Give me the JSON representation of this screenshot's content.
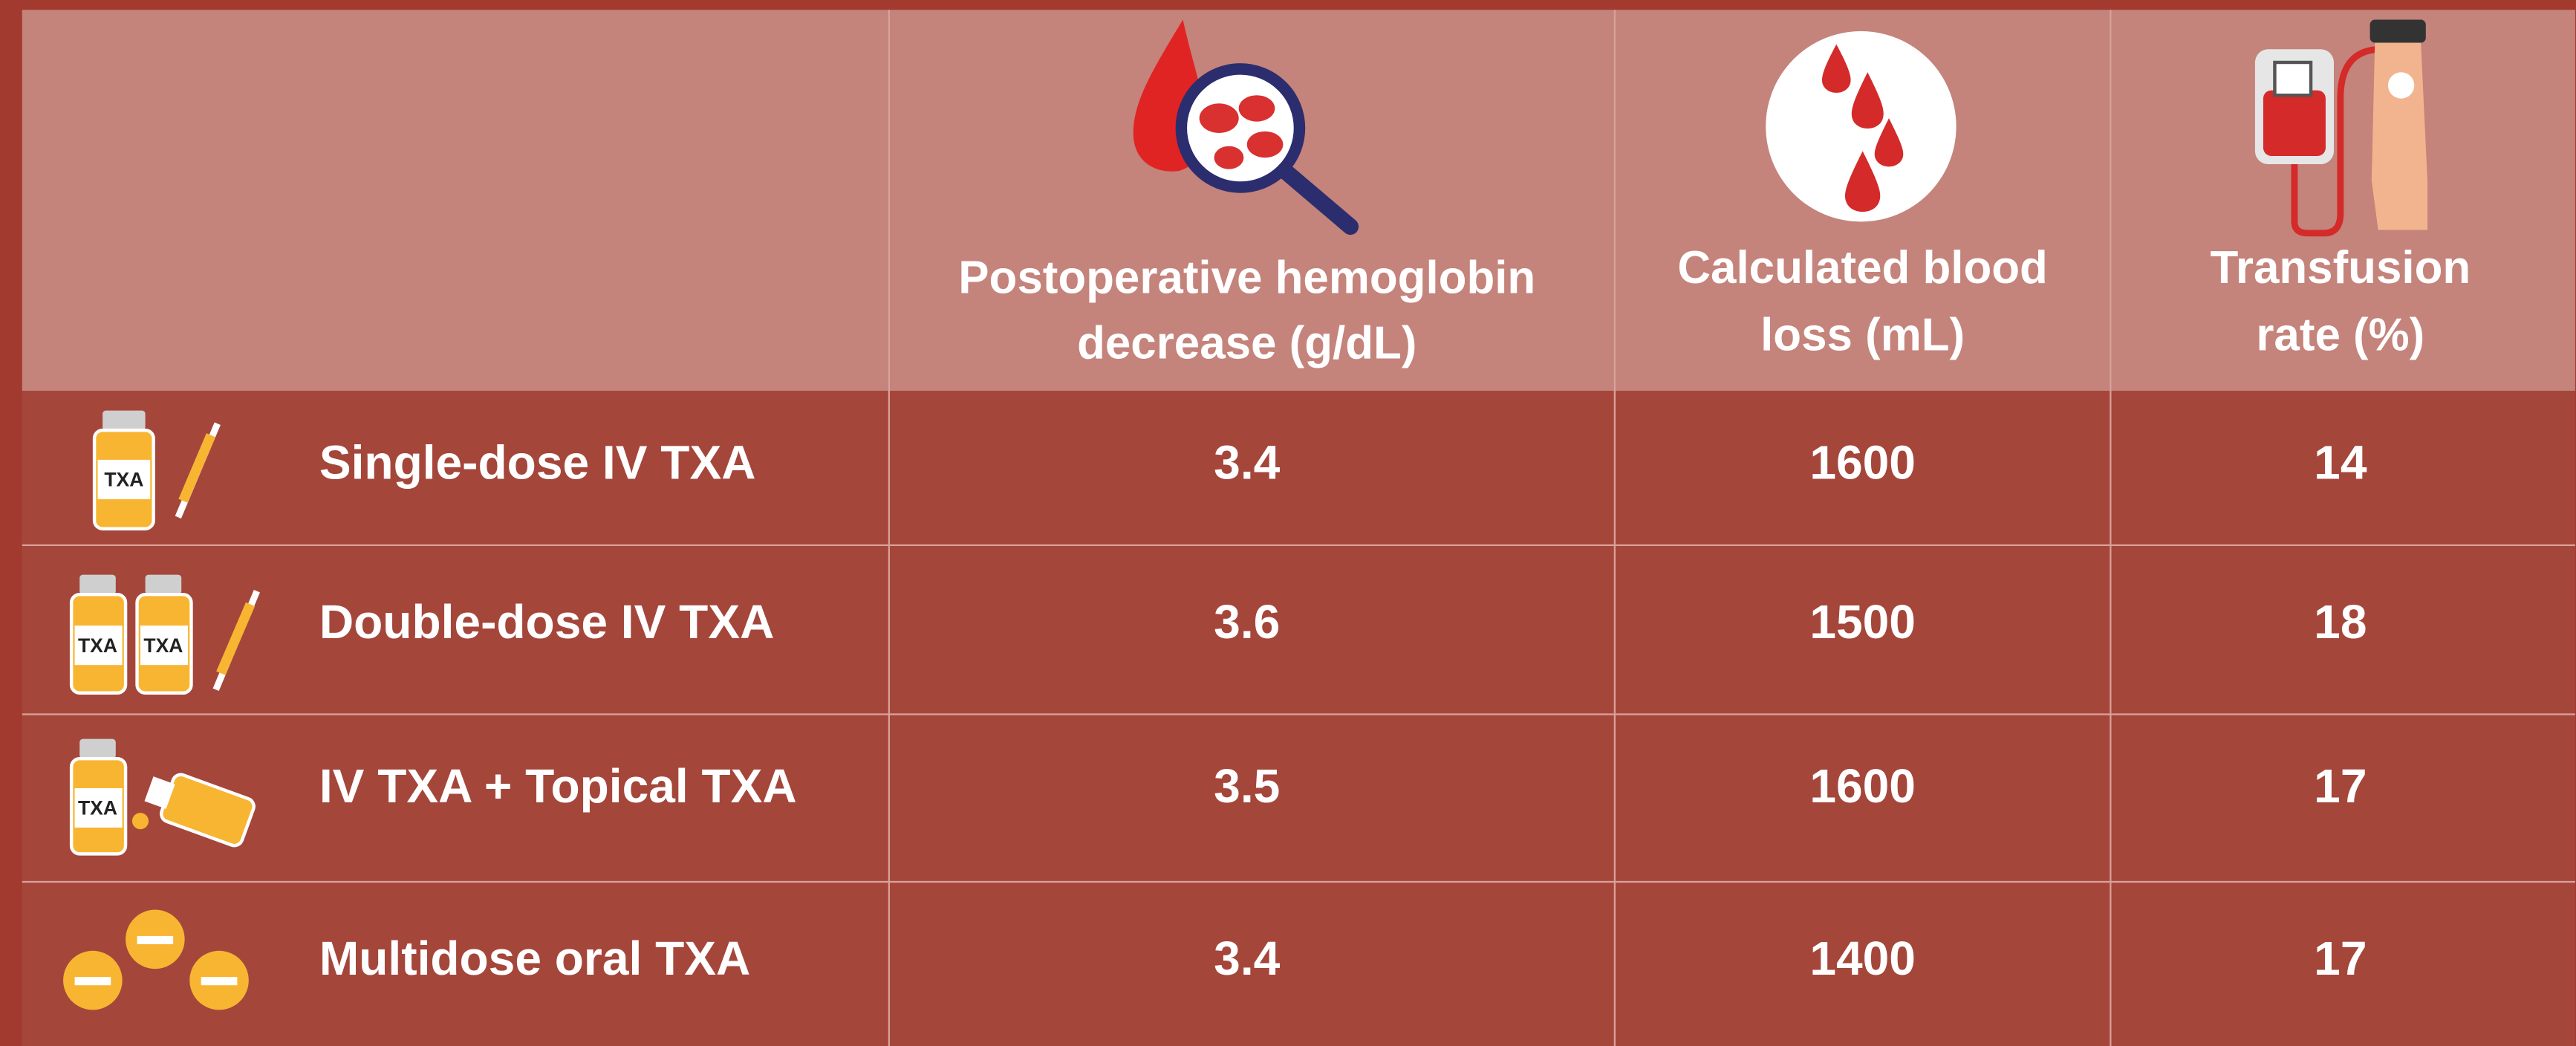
{
  "table": {
    "header": [
      {
        "lines": [
          "Postoperative hemoglobin",
          "decrease (g/dL)"
        ]
      },
      {
        "lines": [
          "Calculated blood",
          "loss (mL)"
        ]
      },
      {
        "lines": [
          "Transfusion",
          "rate (%)"
        ]
      }
    ],
    "rows": [
      [
        "Single-dose IV TXA",
        3.4,
        1600,
        14
      ],
      [
        "Double-dose IV TXA",
        3.6,
        1500,
        18
      ],
      [
        "IV TXA + Topical TXA",
        3.5,
        1600,
        17
      ],
      [
        "Multidose oral TXA",
        3.4,
        1400,
        17
      ]
    ]
  }
}
